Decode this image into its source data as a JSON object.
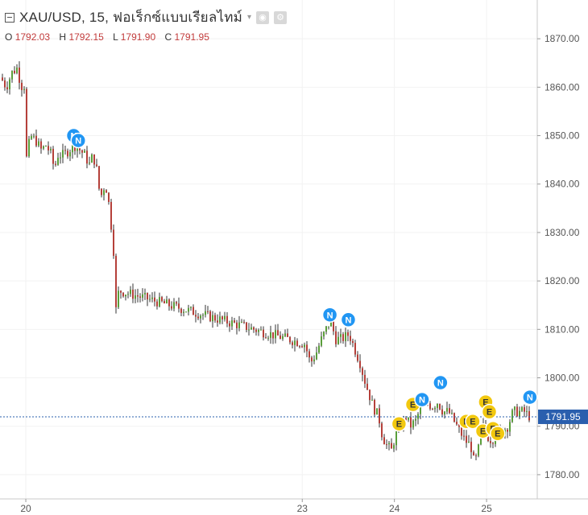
{
  "header": {
    "title": "XAU/USD, 15, ฟอเร็กซ์แบบเรียลไทม์",
    "ohlc": [
      {
        "label": "O",
        "value": "1792.03"
      },
      {
        "label": "H",
        "value": "1792.15"
      },
      {
        "label": "L",
        "value": "1791.90"
      },
      {
        "label": "C",
        "value": "1791.95"
      }
    ]
  },
  "colors": {
    "up": "#5a9e3a",
    "down": "#b5403a",
    "wick": "#333333",
    "last_line": "#2a5fae",
    "news": "#2196f3",
    "earnings": "#f2c80f"
  },
  "chart_data": {
    "type": "line",
    "title": "XAU/USD, 15, ฟอเร็กซ์แบบเรียลไทม์",
    "ylim": [
      1775,
      1878
    ],
    "y_ticks": [
      1870,
      1860,
      1850,
      1840,
      1830,
      1820,
      1810,
      1800,
      1790,
      1780
    ],
    "y_tick_labels": [
      "1870.00",
      "1860.00",
      "1850.00",
      "1840.00",
      "1830.00",
      "1820.00",
      "1810.00",
      "1800.00",
      "1790.00",
      "1780.00"
    ],
    "x_ticks": [
      {
        "label": "20",
        "t": 20.0
      },
      {
        "label": "23",
        "t": 23.0
      },
      {
        "label": "24",
        "t": 24.0
      },
      {
        "label": "25",
        "t": 25.0
      }
    ],
    "xlim": [
      19.72,
      25.55
    ],
    "last_price": 1791.95,
    "last_price_label": "1791.95",
    "price_path": [
      [
        19.72,
        1862
      ],
      [
        19.78,
        1860
      ],
      [
        19.84,
        1863
      ],
      [
        19.9,
        1864
      ],
      [
        19.94,
        1860
      ],
      [
        19.97,
        1861
      ],
      [
        19.99,
        1857
      ],
      [
        20.0,
        1845
      ],
      [
        20.04,
        1850
      ],
      [
        20.1,
        1849
      ],
      [
        20.16,
        1847
      ],
      [
        20.21,
        1848
      ],
      [
        20.27,
        1846
      ],
      [
        20.3,
        1843
      ],
      [
        20.34,
        1846
      ],
      [
        20.4,
        1846
      ],
      [
        20.46,
        1847
      ],
      [
        20.52,
        1848
      ],
      [
        20.58,
        1847
      ],
      [
        20.63,
        1846
      ],
      [
        20.68,
        1844
      ],
      [
        20.72,
        1846
      ],
      [
        20.76,
        1843
      ],
      [
        20.8,
        1837
      ],
      [
        20.85,
        1840
      ],
      [
        20.88,
        1838
      ],
      [
        20.92,
        1831
      ],
      [
        20.95,
        1825
      ],
      [
        20.97,
        1814
      ],
      [
        21.0,
        1818
      ],
      [
        23.02,
        1807
      ],
      [
        23.08,
        1803
      ],
      [
        23.14,
        1805
      ],
      [
        23.2,
        1808
      ],
      [
        23.25,
        1810
      ],
      [
        23.3,
        1812
      ],
      [
        23.35,
        1808
      ],
      [
        23.42,
        1808
      ],
      [
        23.5,
        1809
      ],
      [
        23.56,
        1806
      ],
      [
        23.62,
        1803
      ],
      [
        23.66,
        1800
      ],
      [
        23.71,
        1797
      ],
      [
        23.76,
        1794
      ],
      [
        23.82,
        1792
      ],
      [
        23.86,
        1788
      ],
      [
        23.91,
        1786
      ],
      [
        23.96,
        1785
      ],
      [
        24.0,
        1788
      ],
      [
        24.06,
        1790
      ],
      [
        24.12,
        1792
      ],
      [
        24.16,
        1790
      ],
      [
        24.22,
        1791
      ],
      [
        24.28,
        1794
      ],
      [
        24.34,
        1795
      ],
      [
        24.4,
        1794
      ],
      [
        24.46,
        1795
      ],
      [
        24.52,
        1793
      ],
      [
        24.58,
        1793
      ],
      [
        24.64,
        1791
      ],
      [
        24.7,
        1789
      ],
      [
        24.76,
        1787
      ],
      [
        24.82,
        1786
      ],
      [
        24.86,
        1782
      ],
      [
        24.9,
        1785
      ],
      [
        24.95,
        1790
      ],
      [
        25.0,
        1788
      ],
      [
        25.05,
        1787
      ],
      [
        25.1,
        1789
      ],
      [
        25.16,
        1789
      ],
      [
        25.22,
        1790
      ],
      [
        25.28,
        1793
      ],
      [
        25.34,
        1793
      ],
      [
        25.4,
        1793
      ],
      [
        25.46,
        1792
      ],
      [
        25.5,
        1791.95
      ]
    ],
    "events": [
      {
        "type": "N",
        "t": 20.52,
        "price": 1850
      },
      {
        "type": "N",
        "t": 20.57,
        "price": 1849
      },
      {
        "type": "N",
        "t": 23.3,
        "price": 1813
      },
      {
        "type": "N",
        "t": 23.5,
        "price": 1812
      },
      {
        "type": "E",
        "t": 24.05,
        "price": 1790.5
      },
      {
        "type": "E",
        "t": 24.2,
        "price": 1794.5
      },
      {
        "type": "N",
        "t": 24.3,
        "price": 1795.5
      },
      {
        "type": "N",
        "t": 24.5,
        "price": 1799
      },
      {
        "type": "E",
        "t": 24.78,
        "price": 1791
      },
      {
        "type": "E",
        "t": 24.85,
        "price": 1791
      },
      {
        "type": "E",
        "t": 24.99,
        "price": 1795
      },
      {
        "type": "E",
        "t": 25.03,
        "price": 1793
      },
      {
        "type": "E",
        "t": 24.96,
        "price": 1789
      },
      {
        "type": "E",
        "t": 25.07,
        "price": 1789.5
      },
      {
        "type": "E",
        "t": 25.12,
        "price": 1788.5
      },
      {
        "type": "N",
        "t": 25.47,
        "price": 1796
      }
    ]
  }
}
